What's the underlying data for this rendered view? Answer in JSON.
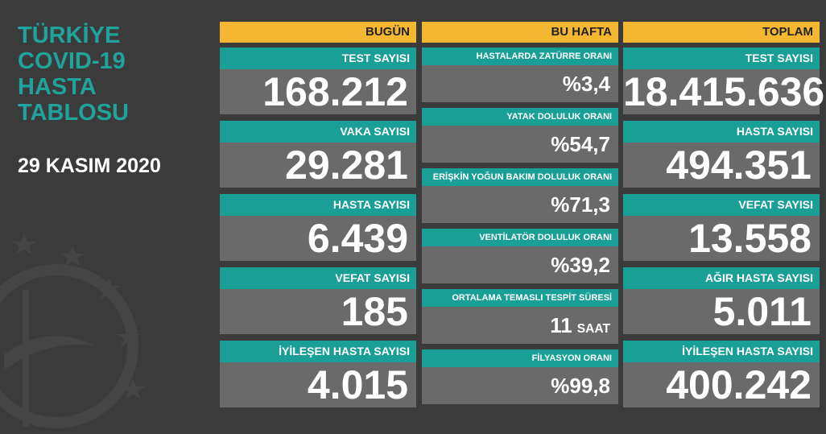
{
  "title_lines": [
    "TÜRKİYE",
    "COVID-19",
    "HASTA",
    "TABLOSU"
  ],
  "date": "29 KASIM 2020",
  "columns": [
    {
      "header": "BUGÜN",
      "items": [
        {
          "label": "TEST SAYISI",
          "value": "168.212"
        },
        {
          "label": "VAKA SAYISI",
          "value": "29.281"
        },
        {
          "label": "HASTA SAYISI",
          "value": "6.439"
        },
        {
          "label": "VEFAT SAYISI",
          "value": "185"
        },
        {
          "label": "İYİLEŞEN HASTA SAYISI",
          "value": "4.015"
        }
      ]
    },
    {
      "header": "BU HAFTA",
      "items": [
        {
          "label": "HASTALARDA ZATÜRRE ORANI",
          "value": "%3,4"
        },
        {
          "label": "YATAK DOLULUK ORANI",
          "value": "%54,7"
        },
        {
          "label": "ERİŞKİN YOĞUN BAKIM DOLULUK ORANI",
          "value": "%71,3"
        },
        {
          "label": "VENTİLATÖR DOLULUK ORANI",
          "value": "%39,2"
        },
        {
          "label": "ORTALAMA TEMASLI TESPİT SÜRESİ",
          "value": "11",
          "unit": "SAAT"
        },
        {
          "label": "FİLYASYON ORANI",
          "value": "%99,8"
        }
      ]
    },
    {
      "header": "TOPLAM",
      "items": [
        {
          "label": "TEST SAYISI",
          "value": "18.415.636"
        },
        {
          "label": "HASTA SAYISI",
          "value": "494.351"
        },
        {
          "label": "VEFAT SAYISI",
          "value": "13.558"
        },
        {
          "label": "AĞIR HASTA SAYISI",
          "value": "5.011"
        },
        {
          "label": "İYİLEŞEN HASTA SAYISI",
          "value": "400.242"
        }
      ]
    }
  ]
}
